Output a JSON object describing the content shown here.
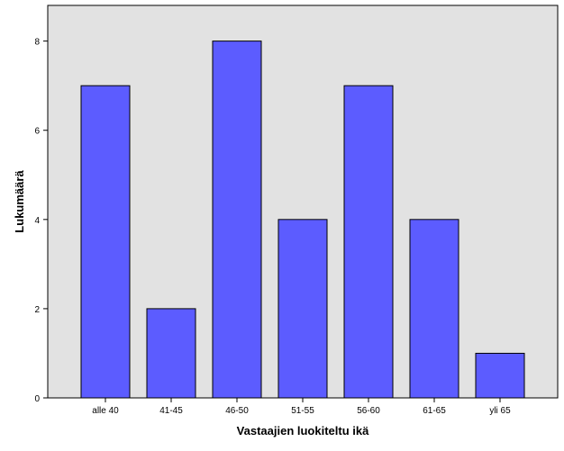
{
  "chart_data": {
    "type": "bar",
    "xlabel": "Vastaajien luokiteltu ikä",
    "ylabel": "Lukumäärä",
    "categories": [
      "alle 40",
      "41-45",
      "46-50",
      "51-55",
      "56-60",
      "61-65",
      "yli 65"
    ],
    "values": [
      7,
      2,
      8,
      4,
      7,
      4,
      1
    ],
    "ylim": [
      0,
      8.8
    ],
    "yticks": [
      0,
      2,
      4,
      6,
      8
    ],
    "grid": false,
    "legend": "none",
    "colors": {
      "bar_fill": "#5c5cff",
      "bar_stroke": "#000000",
      "plot_background": "#e2e2e2",
      "plot_border": "#000000"
    }
  }
}
